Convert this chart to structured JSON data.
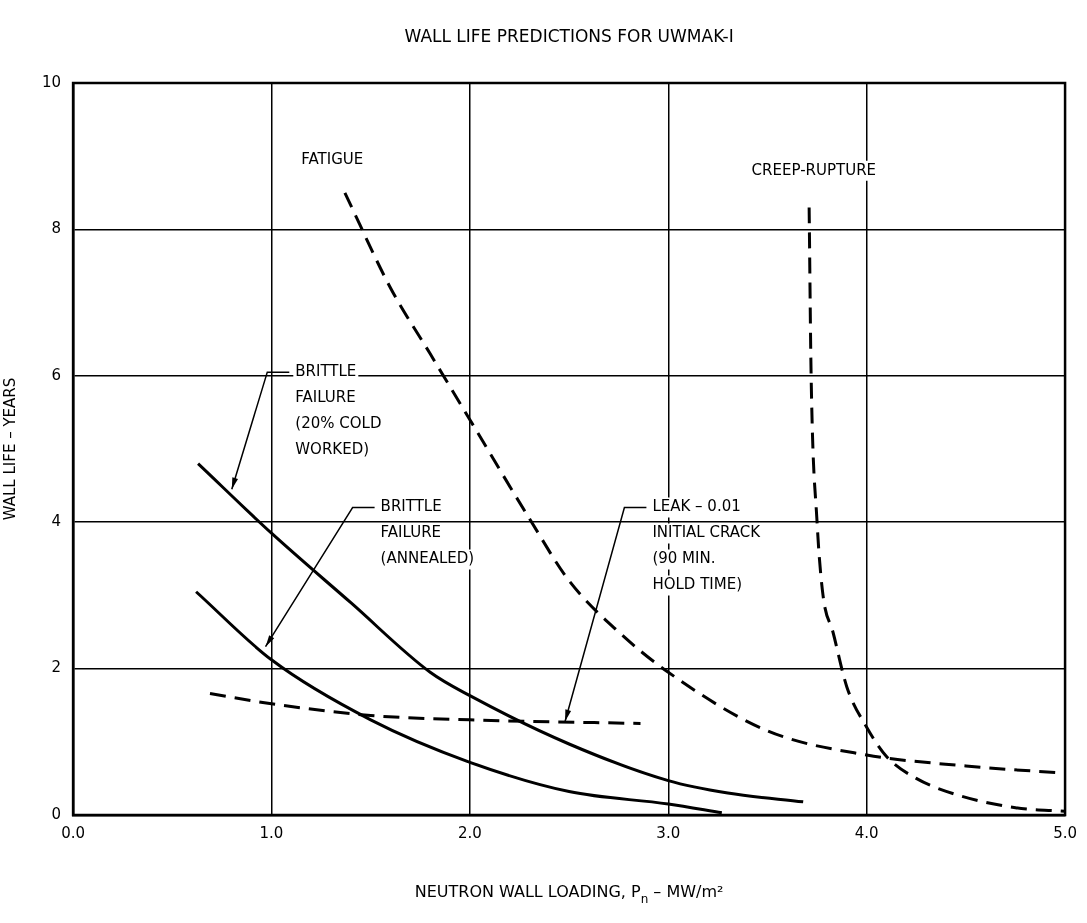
{
  "chart_data": {
    "type": "line",
    "title": "WALL LIFE PREDICTIONS FOR UWMAK-I",
    "xlabel": "NEUTRON WALL LOADING, P$_{n}$ – MW/m²",
    "ylabel": "WALL LIFE – YEARS",
    "xlim": [
      0,
      5
    ],
    "xticks": [
      {
        "value": 0,
        "label": "0.0"
      },
      {
        "value": 1,
        "label": "1.0"
      },
      {
        "value": 2,
        "label": "2.0"
      },
      {
        "value": 3,
        "label": "3.0"
      },
      {
        "value": 4,
        "label": "4.0"
      },
      {
        "value": 5,
        "label": "5.0"
      }
    ],
    "ylim": [
      0,
      10
    ],
    "yticks": [
      0,
      2,
      4,
      6,
      8,
      10
    ],
    "grid": true,
    "marker": "none",
    "series": [
      {
        "name": "FATIGUE",
        "color": "#000000",
        "line_style": "dashed",
        "x": [
          1.37,
          1.6,
          1.8,
          2.0,
          2.3,
          2.5,
          2.75,
          3.0,
          3.5,
          4.0,
          4.5,
          5.0
        ],
        "values": [
          8.5,
          7.2,
          6.3,
          5.4,
          4.05,
          3.2,
          2.5,
          1.95,
          1.15,
          0.82,
          0.67,
          0.57
        ]
      },
      {
        "name": "CREEP-RUPTURE",
        "color": "#000000",
        "line_style": "dashed",
        "x": [
          3.71,
          3.72,
          3.75,
          3.78,
          3.83,
          3.9,
          4.0,
          4.1,
          4.25,
          4.45,
          4.75,
          5.0
        ],
        "values": [
          8.3,
          6,
          4,
          3,
          2.5,
          1.75,
          1.2,
          0.8,
          0.5,
          0.28,
          0.1,
          0.05
        ]
      },
      {
        "name": "BRITTLE FAILURE (20% COLD WORKED)",
        "color": "#000000",
        "line_style": "solid",
        "x": [
          0.63,
          1.0,
          1.4,
          1.8,
          2.0,
          2.5,
          3.0,
          3.3,
          3.68
        ],
        "values": [
          4.8,
          3.85,
          2.9,
          1.95,
          1.63,
          0.97,
          0.47,
          0.3,
          0.18
        ]
      },
      {
        "name": "BRITTLE FAILURE (ANNEALED)",
        "color": "#000000",
        "line_style": "solid",
        "x": [
          0.62,
          1.0,
          1.5,
          2.0,
          2.5,
          3.0,
          3.27
        ],
        "values": [
          3.05,
          2.12,
          1.3,
          0.72,
          0.32,
          0.15,
          0.03
        ]
      },
      {
        "name": "LEAK – 0.01 INITIAL CRACK (90 MIN. HOLD TIME)",
        "color": "#000000",
        "line_style": "dashed",
        "x": [
          0.69,
          1.0,
          1.5,
          2.0,
          2.86
        ],
        "values": [
          1.66,
          1.52,
          1.36,
          1.3,
          1.25
        ]
      }
    ]
  }
}
